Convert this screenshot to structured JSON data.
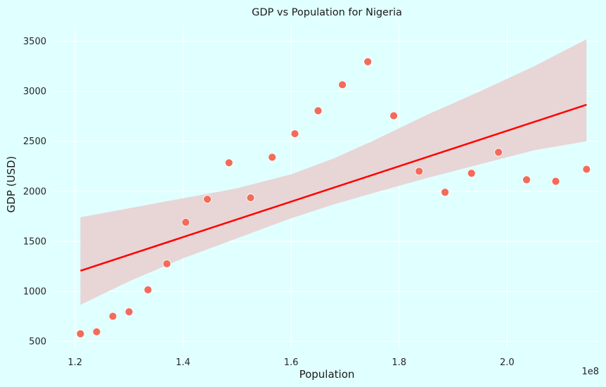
{
  "chart_data": {
    "type": "scatter",
    "title": "GDP vs Population for Nigeria",
    "xlabel": "Population",
    "ylabel": "GDP (USD)",
    "x_offset_label": "1e8",
    "xlim": [
      1.16,
      2.17
    ],
    "ylim": [
      430,
      3680
    ],
    "x_ticks": [
      1.2,
      1.4,
      1.6,
      1.8,
      2.0
    ],
    "x_tick_labels": [
      "1.2",
      "1.4",
      "1.6",
      "1.8",
      "2.0"
    ],
    "y_ticks": [
      500,
      1000,
      1500,
      2000,
      2500,
      3000,
      3500
    ],
    "y_tick_labels": [
      "500",
      "1000",
      "1500",
      "2000",
      "2500",
      "3000",
      "3500"
    ],
    "grid": true,
    "series": [
      {
        "x": [
          1.21,
          1.24,
          1.27,
          1.3,
          1.335,
          1.37,
          1.405,
          1.445,
          1.485,
          1.525,
          1.565,
          1.607,
          1.65,
          1.695,
          1.742,
          1.79,
          1.837,
          1.885,
          1.934,
          1.984,
          2.036,
          2.09,
          2.147
        ],
        "y": [
          575,
          595,
          750,
          795,
          1015,
          1275,
          1690,
          1920,
          2285,
          1935,
          2340,
          2575,
          2805,
          3065,
          3295,
          2755,
          2200,
          1990,
          2180,
          2390,
          2115,
          2100,
          2220
        ]
      }
    ],
    "regression": {
      "x": [
        1.21,
        2.147
      ],
      "y": [
        1205,
        2865
      ],
      "ci_x": [
        1.21,
        1.3,
        1.4,
        1.5,
        1.6,
        1.68,
        1.75,
        1.85,
        1.95,
        2.05,
        2.147
      ],
      "ci_lower": [
        865,
        1100,
        1330,
        1530,
        1730,
        1870,
        1980,
        2130,
        2270,
        2410,
        2500
      ],
      "ci_upper": [
        1740,
        1830,
        1930,
        2030,
        2170,
        2330,
        2500,
        2760,
        3000,
        3250,
        3520
      ]
    },
    "colors": {
      "background": "#e0ffff",
      "grid": "#ffffff",
      "points": "#f26b5b",
      "point_edge": "#ffffff",
      "line": "#ff0000",
      "band": "#e8d3d4"
    }
  }
}
